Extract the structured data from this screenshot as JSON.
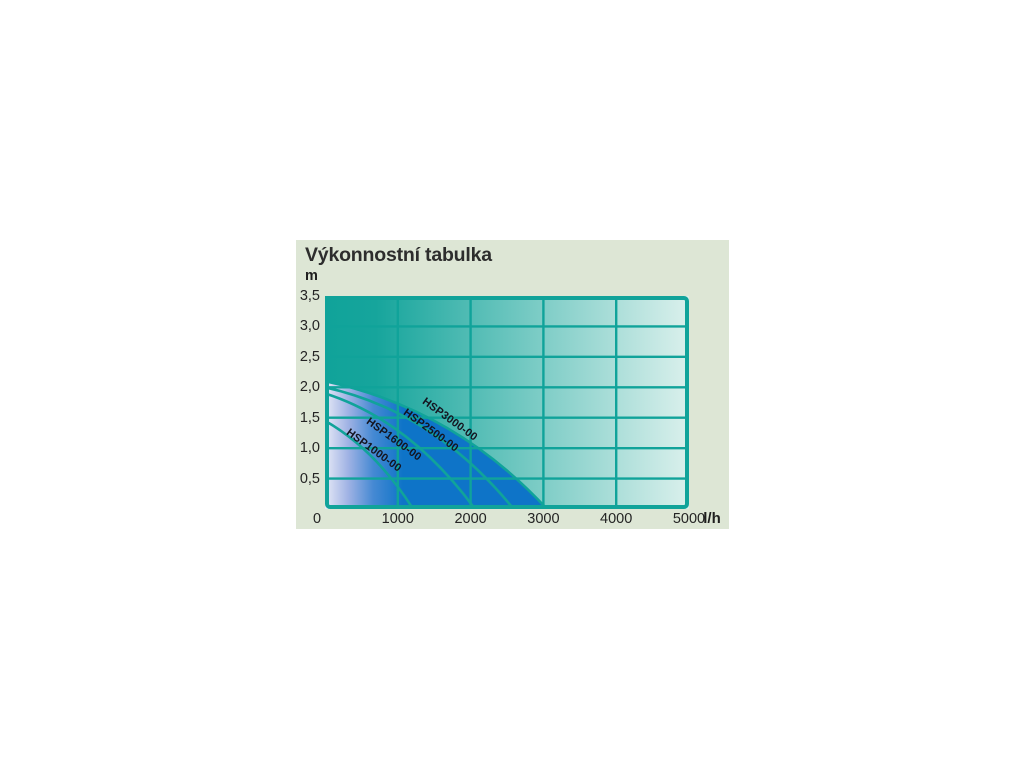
{
  "page": {
    "background": "#ffffff",
    "panel_background": "#dde6d5"
  },
  "colors": {
    "teal": "#10a39a",
    "plot_bg_gradient": [
      [
        "0%",
        "#10a39a"
      ],
      [
        "14%",
        "#16a59c"
      ],
      [
        "100%",
        "#daf0ec"
      ]
    ],
    "area_fill_gradient": [
      [
        "0%",
        "#e6e9f6"
      ],
      [
        "30%",
        "#9fb2e4"
      ],
      [
        "62%",
        "#4589d3"
      ],
      [
        "100%",
        "#0e74c8"
      ]
    ],
    "curve_label_color": "#14141f",
    "tick_label_color": "#242424",
    "title_color": "#2d2d2d"
  },
  "chart_data": {
    "type": "area",
    "title": "Výkonnostní tabulka",
    "x_unit_label": "l/h",
    "y_unit_label": "m",
    "xlim": [
      0,
      5000
    ],
    "ylim": [
      0,
      3.5
    ],
    "grid": true,
    "x_grid_step": 1000,
    "y_grid_step": 0.5,
    "x_ticks": [
      {
        "v": 0,
        "label": "0"
      },
      {
        "v": 1000,
        "label": "1000"
      },
      {
        "v": 2000,
        "label": "2000"
      },
      {
        "v": 3000,
        "label": "3000"
      },
      {
        "v": 4000,
        "label": "4000"
      },
      {
        "v": 5000,
        "label": "5000"
      }
    ],
    "y_ticks": [
      {
        "v": 3.5,
        "label": "3,5"
      },
      {
        "v": 3.0,
        "label": "3,0"
      },
      {
        "v": 2.5,
        "label": "2,5"
      },
      {
        "v": 2.0,
        "label": "2,0"
      },
      {
        "v": 1.5,
        "label": "1,5"
      },
      {
        "v": 1.0,
        "label": "1,0"
      },
      {
        "v": 0.5,
        "label": "0,5"
      }
    ],
    "series": [
      {
        "name": "HSP1000-00",
        "points_lh_m": [
          [
            0,
            1.45
          ],
          [
            650,
            0.85
          ],
          [
            1210,
            0
          ]
        ]
      },
      {
        "name": "HSP1600-00",
        "points_lh_m": [
          [
            0,
            1.9
          ],
          [
            1100,
            1.2
          ],
          [
            2060,
            0
          ]
        ]
      },
      {
        "name": "HSP2500-00",
        "points_lh_m": [
          [
            0,
            2.0
          ],
          [
            1400,
            1.3
          ],
          [
            2590,
            0
          ]
        ]
      },
      {
        "name": "HSP3000-00",
        "points_lh_m": [
          [
            0,
            2.1
          ],
          [
            1650,
            1.35
          ],
          [
            3050,
            0
          ]
        ]
      }
    ],
    "fill_under_series": "HSP3000-00"
  }
}
